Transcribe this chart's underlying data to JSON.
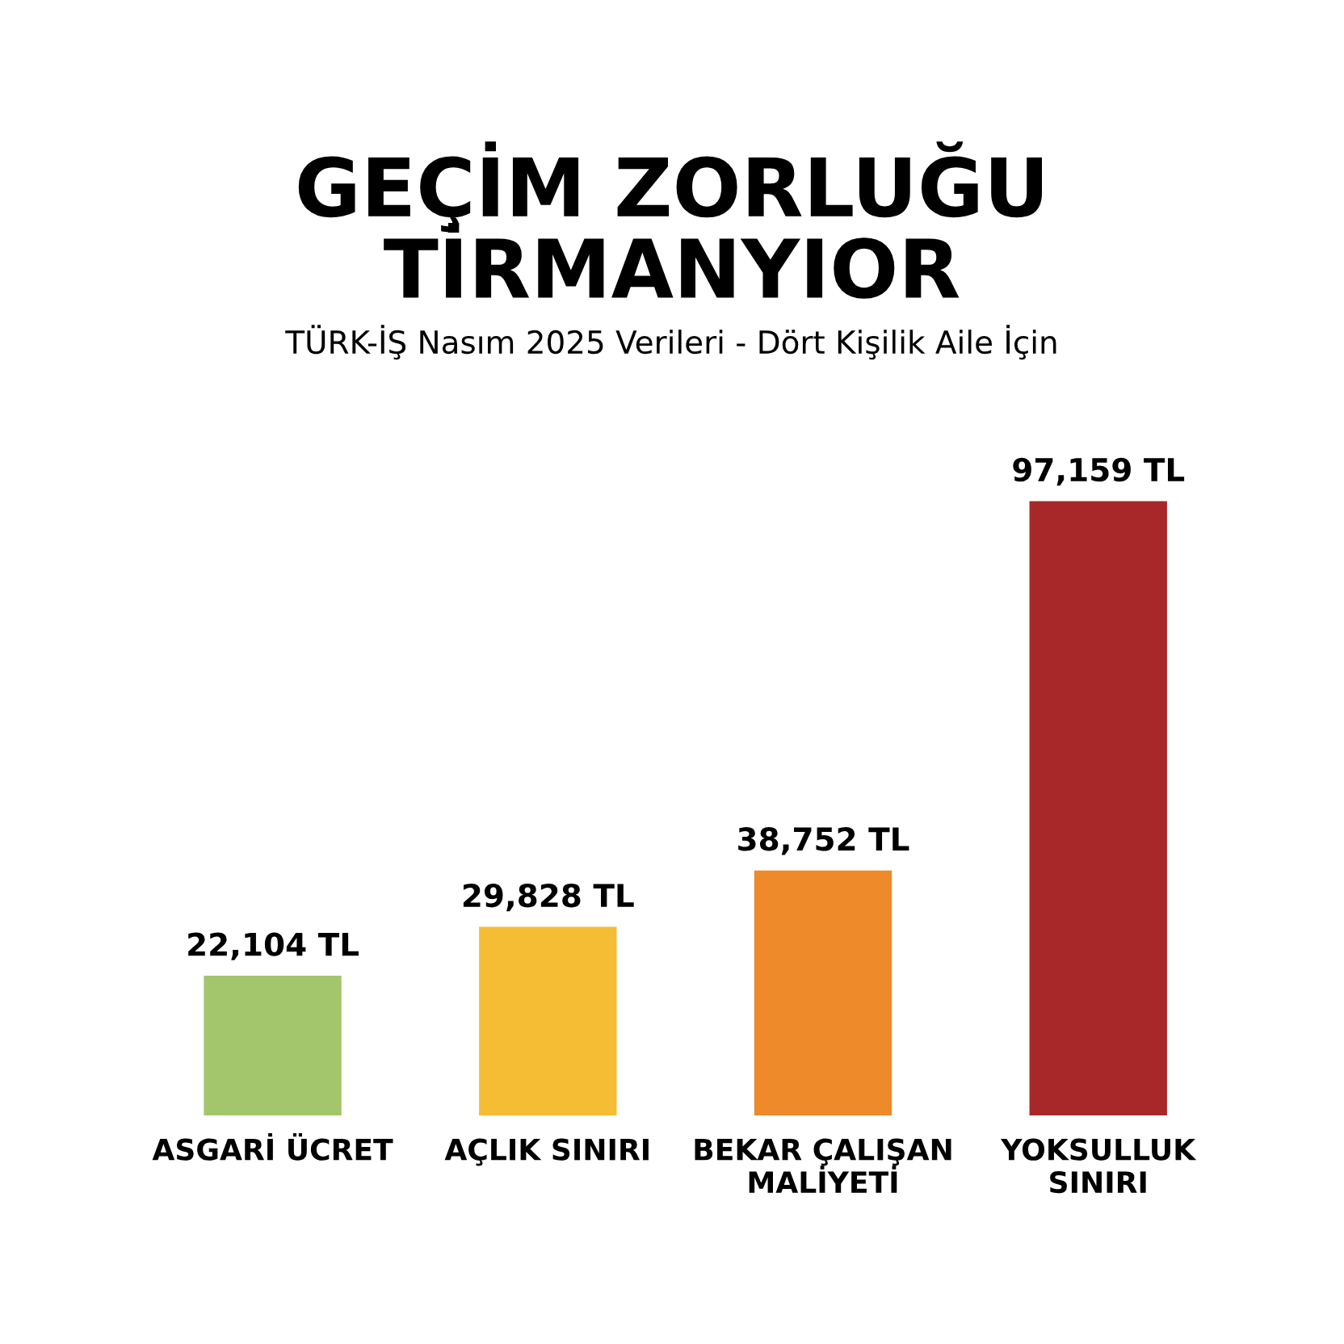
{
  "chart_data": {
    "type": "bar",
    "title": "GEÇİM ZORLUĞU\nTİRMANYIOR",
    "subtitle": "TÜRK-İŞ Nasım 2025 Verileri - Dört Kişilik Aile İçin",
    "categories": [
      "ASGARİ ÜCRET",
      "AÇLIK SINIRI",
      "BEKAR ÇALIŞAN\nMALİYETİ",
      "YOKSULLUK\nSINIRI"
    ],
    "values": [
      22104,
      29828,
      38752,
      97159
    ],
    "colors": [
      "#a3c66c",
      "#f4bd34",
      "#ee8a2a",
      "#a8282a"
    ],
    "value_labels": [
      "22,104 TL",
      "29,828 TL",
      "38,752 TL",
      "97,159 TL"
    ],
    "tick_labels": "x",
    "grid": false,
    "legend": false
  }
}
